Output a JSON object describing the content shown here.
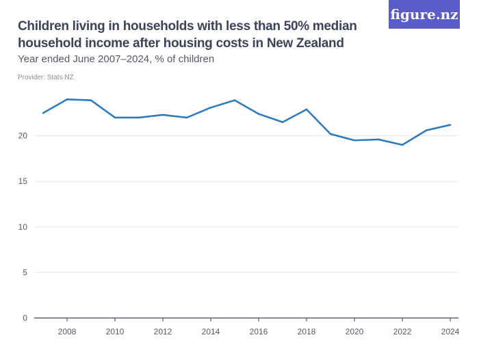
{
  "header": {
    "title": "Children living in households with less than 50% median household income after housing costs in New Zealand",
    "subtitle": "Year ended June 2007–2024, % of children",
    "provider": "Provider: Stats NZ",
    "logo_text": "figure.nz"
  },
  "colors": {
    "line": "#2e7bbf",
    "logo_bg": "#5a5cc8",
    "grid": "#e6e6e6"
  },
  "chart_data": {
    "type": "line",
    "title": "Children living in households with less than 50% median household income after housing costs in New Zealand",
    "subtitle": "Year ended June 2007–2024, % of children",
    "xlabel": "",
    "ylabel": "",
    "x": [
      2007,
      2008,
      2009,
      2010,
      2011,
      2012,
      2013,
      2014,
      2015,
      2016,
      2017,
      2018,
      2019,
      2020,
      2021,
      2022,
      2023,
      2024
    ],
    "series": [
      {
        "values": [
          22.5,
          24.0,
          23.9,
          22.0,
          22.0,
          22.3,
          22.0,
          23.1,
          23.9,
          22.4,
          21.5,
          22.9,
          20.2,
          19.5,
          19.6,
          19.0,
          20.6,
          21.2
        ]
      }
    ],
    "xticks": [
      "2008",
      "2010",
      "2012",
      "2014",
      "2016",
      "2018",
      "2020",
      "2022",
      "2024"
    ],
    "yticks": [
      "0",
      "5",
      "10",
      "15",
      "20"
    ],
    "xlim": [
      2007,
      2024
    ],
    "ylim": [
      0,
      25
    ],
    "grid": true,
    "legend": "none"
  }
}
